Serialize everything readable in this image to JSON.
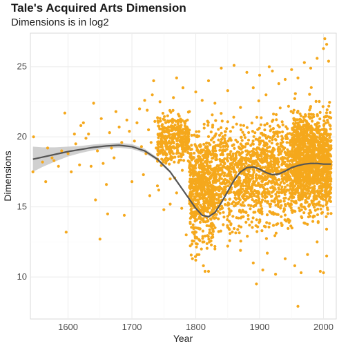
{
  "chart_data": {
    "type": "scatter",
    "title": "Tale's Acquired Arts Dimension",
    "subtitle": "Dimensions is in log2",
    "xlabel": "Year",
    "ylabel": "Dimensions",
    "xlim": [
      1541,
      2020
    ],
    "ylim": [
      7,
      27.4
    ],
    "x_ticks": [
      1600,
      1700,
      1800,
      1900,
      2000
    ],
    "y_ticks": [
      10,
      15,
      20,
      25
    ],
    "grid": true,
    "colors": {
      "points": "#F5A81C",
      "smooth_line": "#555555",
      "confidence_band": "#C8C8C8",
      "grid_major": "#EBEBEB",
      "grid_minor": "#F5F5F5"
    },
    "smooth": {
      "x": [
        1545,
        1560,
        1580,
        1600,
        1620,
        1640,
        1660,
        1680,
        1700,
        1720,
        1740,
        1760,
        1780,
        1800,
        1810,
        1820,
        1830,
        1840,
        1850,
        1860,
        1870,
        1880,
        1890,
        1900,
        1910,
        1920,
        1930,
        1940,
        1950,
        1960,
        1970,
        1980,
        1990,
        2000,
        2012
      ],
      "y": [
        18.4,
        18.55,
        18.75,
        18.95,
        19.1,
        19.25,
        19.35,
        19.4,
        19.3,
        19.0,
        18.4,
        17.5,
        16.2,
        14.9,
        14.4,
        14.3,
        14.6,
        15.3,
        16.1,
        16.9,
        17.5,
        17.8,
        17.85,
        17.7,
        17.45,
        17.3,
        17.35,
        17.55,
        17.8,
        17.95,
        18.05,
        18.1,
        18.1,
        18.05,
        18.05
      ],
      "band_halfwidth": [
        0.9,
        0.7,
        0.5,
        0.35,
        0.25,
        0.2,
        0.18,
        0.18,
        0.18,
        0.15,
        0.12,
        0.1,
        0.08,
        0.08,
        0.08,
        0.08,
        0.08,
        0.08,
        0.08,
        0.08,
        0.08,
        0.08,
        0.08,
        0.08,
        0.08,
        0.06,
        0.06,
        0.06,
        0.06,
        0.05,
        0.05,
        0.05,
        0.05,
        0.05,
        0.08
      ]
    },
    "points": [
      [
        1545,
        17.5
      ],
      [
        1546,
        20.0
      ],
      [
        1560,
        18.2
      ],
      [
        1565,
        16.8
      ],
      [
        1568,
        19.2
      ],
      [
        1575,
        18.5
      ],
      [
        1578,
        18.3
      ],
      [
        1585,
        17.9
      ],
      [
        1590,
        19.0
      ],
      [
        1595,
        21.7
      ],
      [
        1597,
        13.2
      ],
      [
        1600,
        18.8
      ],
      [
        1605,
        17.5
      ],
      [
        1610,
        20.2
      ],
      [
        1612,
        19.5
      ],
      [
        1618,
        18.0
      ],
      [
        1620,
        20.8
      ],
      [
        1624,
        21.0
      ],
      [
        1628,
        19.9
      ],
      [
        1632,
        20.2
      ],
      [
        1636,
        17.9
      ],
      [
        1640,
        22.4
      ],
      [
        1643,
        15.5
      ],
      [
        1646,
        19.0
      ],
      [
        1650,
        12.7
      ],
      [
        1652,
        21.3
      ],
      [
        1655,
        18.1
      ],
      [
        1660,
        16.6
      ],
      [
        1662,
        14.5
      ],
      [
        1665,
        20.3
      ],
      [
        1668,
        19.2
      ],
      [
        1672,
        18.5
      ],
      [
        1675,
        21.8
      ],
      [
        1680,
        20.7
      ],
      [
        1684,
        19.6
      ],
      [
        1688,
        14.4
      ],
      [
        1692,
        21.2
      ],
      [
        1696,
        20.4
      ],
      [
        1700,
        16.8
      ],
      [
        1704,
        19.7
      ],
      [
        1708,
        21.0
      ],
      [
        1712,
        22.0
      ],
      [
        1715,
        19.3
      ],
      [
        1718,
        17.3
      ],
      [
        1720,
        22.6
      ],
      [
        1722,
        18.8
      ],
      [
        1724,
        21.9
      ],
      [
        1726,
        20.5
      ],
      [
        1728,
        15.8
      ],
      [
        1730,
        19.6
      ],
      [
        1732,
        23.0
      ],
      [
        1734,
        24.0
      ],
      [
        1736,
        21.1
      ],
      [
        1738,
        19.2
      ],
      [
        1740,
        16.5
      ],
      [
        1744,
        22.5
      ],
      [
        1748,
        20.1
      ],
      [
        1752,
        18.4
      ],
      [
        1756,
        21.5
      ],
      [
        1760,
        17.0
      ],
      [
        1765,
        22.8
      ],
      [
        1770,
        24.2
      ],
      [
        1780,
        23.5
      ],
      [
        1790,
        21.8
      ],
      [
        1800,
        23.2
      ],
      [
        1810,
        22.6
      ],
      [
        1820,
        24.0
      ],
      [
        1830,
        22.4
      ],
      [
        1840,
        24.9
      ],
      [
        1850,
        23.3
      ],
      [
        1860,
        25.1
      ],
      [
        1870,
        22.1
      ],
      [
        1880,
        24.6
      ],
      [
        1890,
        23.5
      ],
      [
        1900,
        24.4
      ],
      [
        1910,
        23.0
      ],
      [
        1915,
        25.0
      ],
      [
        1920,
        24.7
      ],
      [
        1930,
        23.8
      ],
      [
        1940,
        24.1
      ],
      [
        1950,
        24.8
      ],
      [
        1960,
        24.2
      ],
      [
        1970,
        25.3
      ],
      [
        1980,
        24.9
      ],
      [
        1990,
        25.6
      ],
      [
        2000,
        26.3
      ],
      [
        2002,
        27.0
      ],
      [
        2005,
        26.6
      ],
      [
        2008,
        25.4
      ],
      [
        1800,
        11.2
      ],
      [
        1812,
        10.8
      ],
      [
        1820,
        10.4
      ],
      [
        1830,
        12.0
      ],
      [
        1850,
        12.2
      ],
      [
        1870,
        11.9
      ],
      [
        1890,
        11.0
      ],
      [
        1895,
        9.5
      ],
      [
        1905,
        10.5
      ],
      [
        1912,
        11.7
      ],
      [
        1925,
        10.2
      ],
      [
        1940,
        11.3
      ],
      [
        1955,
        10.8
      ],
      [
        1960,
        7.9
      ],
      [
        1965,
        10.3
      ],
      [
        1975,
        11.6
      ],
      [
        1990,
        12.5
      ],
      [
        1995,
        10.4
      ],
      [
        2000,
        10.3
      ],
      [
        2005,
        11.5
      ],
      [
        1785,
        13.0
      ],
      [
        1778,
        14.9
      ],
      [
        1770,
        16.0
      ],
      [
        1760,
        15.2
      ],
      [
        1750,
        14.8
      ],
      [
        1742,
        16.2
      ]
    ]
  }
}
